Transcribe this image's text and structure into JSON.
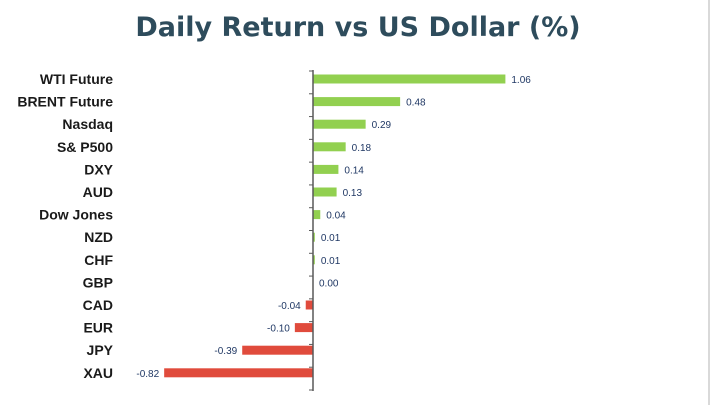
{
  "chart_data": {
    "type": "bar",
    "orientation": "horizontal",
    "title": "Daily Return vs US Dollar (%)",
    "categories": [
      "WTI Future",
      "BRENT Future",
      "Nasdaq",
      "S& P500",
      "DXY",
      "AUD",
      "Dow Jones",
      "NZD",
      "CHF",
      "GBP",
      "CAD",
      "EUR",
      "JPY",
      "XAU"
    ],
    "values": [
      1.06,
      0.48,
      0.29,
      0.18,
      0.14,
      0.13,
      0.04,
      0.01,
      0.01,
      0.0,
      -0.04,
      -0.1,
      -0.39,
      -0.82
    ],
    "value_labels": [
      "1.06",
      "0.48",
      "0.29",
      "0.18",
      "0.14",
      "0.13",
      "0.04",
      "0.01",
      "0.01",
      "0.00",
      "-0.04",
      "-0.10",
      "-0.39",
      "-0.82"
    ],
    "xlim": [
      -0.82,
      1.06
    ],
    "colors": {
      "positive": "#92d050",
      "negative": "#e04b3c",
      "axis": "#595959"
    },
    "grid": false,
    "legend": "none"
  }
}
